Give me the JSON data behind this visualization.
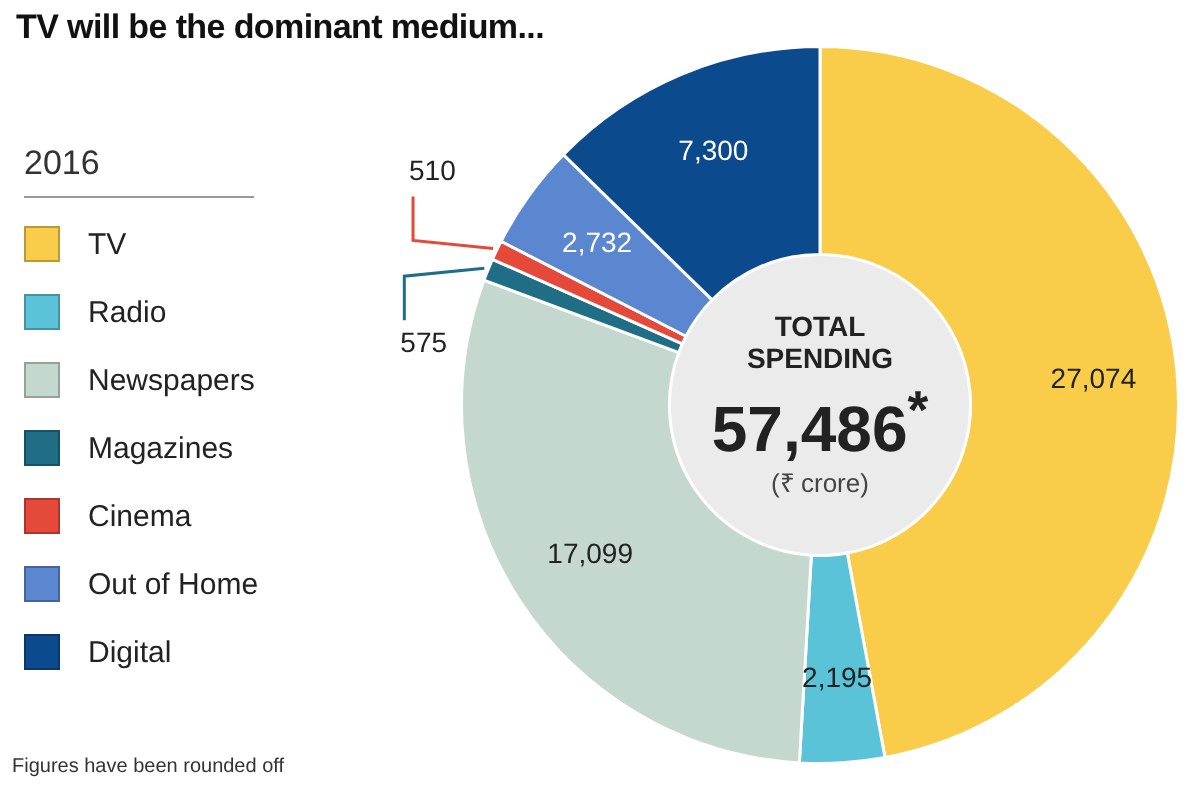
{
  "chart_data": {
    "type": "donut",
    "title": "TV will be the dominant medium...",
    "legend_title": "2016",
    "legend": "left",
    "categories": [
      "TV",
      "Radio",
      "Newspapers",
      "Magazines",
      "Cinema",
      "Out of Home",
      "Digital"
    ],
    "values": [
      27074,
      2195,
      17099,
      575,
      510,
      2732,
      7300
    ],
    "colors": [
      "#f9cd4a",
      "#5bc3d8",
      "#c5d8cf",
      "#1f6e86",
      "#e5493a",
      "#5b87d0",
      "#0c4a8e"
    ],
    "value_labels": [
      "27,074",
      "2,195",
      "17,099",
      "575",
      "510",
      "2,732",
      "7,300"
    ],
    "annotations": [
      "TOTAL SPENDING",
      "57,486$^{*}$",
      "(₹ crore)",
      "Figures have been rounded off"
    ]
  }
}
